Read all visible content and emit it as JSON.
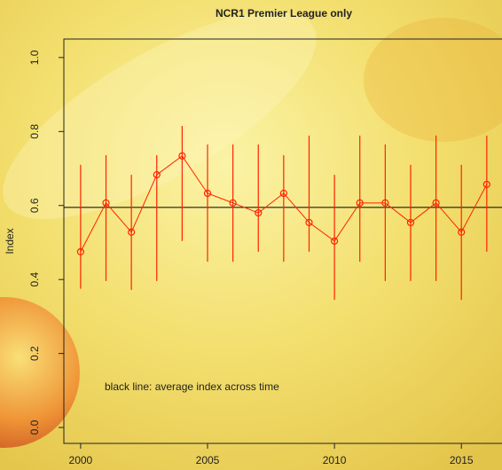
{
  "chart_data": {
    "type": "errorbar",
    "title": "NCR1 Premier League only",
    "y_label": "Index",
    "annotation": "black line: average index across time",
    "x": [
      2000,
      2001,
      2002,
      2003,
      2004,
      2005,
      2006,
      2007,
      2008,
      2009,
      2010,
      2011,
      2012,
      2013,
      2014,
      2015,
      2016
    ],
    "values": [
      0.475,
      0.607,
      0.528,
      0.683,
      0.734,
      0.633,
      0.607,
      0.58,
      0.633,
      0.554,
      0.504,
      0.607,
      0.607,
      0.554,
      0.607,
      0.528,
      0.657
    ],
    "upper": [
      0.71,
      0.736,
      0.683,
      0.736,
      0.815,
      0.765,
      0.765,
      0.765,
      0.736,
      0.789,
      0.683,
      0.789,
      0.765,
      0.71,
      0.789,
      0.71,
      0.789
    ],
    "lower": [
      0.375,
      0.396,
      0.372,
      0.396,
      0.504,
      0.448,
      0.448,
      0.475,
      0.448,
      0.475,
      0.345,
      0.448,
      0.396,
      0.396,
      0.396,
      0.345,
      0.475
    ],
    "color": "#ff2200",
    "average": 0.595,
    "average_color": "#000000",
    "xlim": [
      1999.34,
      2016.6
    ],
    "xticks": [
      2000,
      2005,
      2010,
      2015
    ],
    "ylim": [
      -0.043,
      1.05
    ],
    "yticks": [
      {
        "value": 0,
        "label": "0.0"
      },
      {
        "value": 0.2,
        "label": "0.2"
      },
      {
        "value": 0.4,
        "label": "0.4"
      },
      {
        "value": 0.6,
        "label": "0.6"
      },
      {
        "value": 0.8,
        "label": "0.8"
      },
      {
        "value": 1,
        "label": "1.0"
      }
    ]
  }
}
